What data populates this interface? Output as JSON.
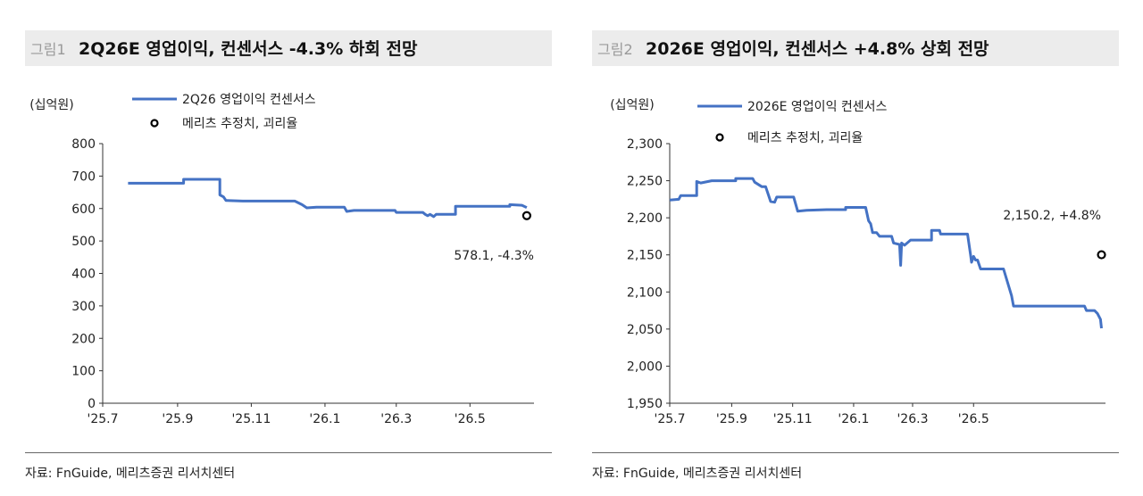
{
  "charts": [
    {
      "fig_tag": "그림1",
      "title": "2Q26E 영업이익, 컨센서스 -4.3% 하회 전망",
      "source": "자료: FnGuide, 메리츠증권 리서치센터",
      "chart_data": {
        "type": "line",
        "unit": "(십억원)",
        "series": [
          {
            "name": "2Q26 영업이익 컨센서스",
            "color": "#4472c4",
            "points": [
              [
                "2025-07-22",
                678
              ],
              [
                "2025-09-06",
                678
              ],
              [
                "2025-09-06",
                690
              ],
              [
                "2025-10-06",
                690
              ],
              [
                "2025-10-06",
                642
              ],
              [
                "2025-10-09",
                636
              ],
              [
                "2025-10-11",
                625
              ],
              [
                "2025-10-25",
                623
              ],
              [
                "2025-12-07",
                623
              ],
              [
                "2025-12-13",
                612
              ],
              [
                "2025-12-17",
                602
              ],
              [
                "2025-12-25",
                604
              ],
              [
                "2026-01-17",
                604
              ],
              [
                "2026-01-19",
                591
              ],
              [
                "2026-01-25",
                594
              ],
              [
                "2026-02-28",
                594
              ],
              [
                "2026-03-01",
                588
              ],
              [
                "2026-03-23",
                588
              ],
              [
                "2026-03-25",
                582
              ],
              [
                "2026-03-27",
                578
              ],
              [
                "2026-03-29",
                582
              ],
              [
                "2026-04-01",
                575
              ],
              [
                "2026-04-03",
                582
              ],
              [
                "2026-04-19",
                582
              ],
              [
                "2026-04-19",
                607
              ],
              [
                "2026-06-03",
                607
              ],
              [
                "2026-06-03",
                612
              ],
              [
                "2026-06-13",
                610
              ],
              [
                "2026-06-17",
                603
              ]
            ]
          },
          {
            "name": "메리츠 추정치, 괴리율",
            "marker": "circle",
            "points": [
              [
                "2026-06-17",
                578.1
              ]
            ],
            "label": "578.1, -4.3%"
          }
        ],
        "x_ticks": [
          "'25.7",
          "'25.9",
          "'25.11",
          "'26.1",
          "'26.3",
          "'26.5"
        ],
        "x_tick_dates": [
          "2025-07-01",
          "2025-09-01",
          "2025-11-01",
          "2026-01-01",
          "2026-03-01",
          "2026-05-01"
        ],
        "x_range": [
          "2025-07-01",
          "2026-06-23"
        ],
        "y_ticks": [
          "800",
          "700",
          "600",
          "500",
          "400",
          "300",
          "200",
          "100",
          "0"
        ],
        "y_tick_values": [
          800,
          700,
          600,
          500,
          400,
          300,
          200,
          100,
          0
        ],
        "ylim": [
          0,
          800
        ],
        "grid": false
      }
    },
    {
      "fig_tag": "그림2",
      "title": "2026E 영업이익, 컨센서스 +4.8% 상회 전망",
      "source": "자료: FnGuide, 메리츠증권 리서치센터",
      "chart_data": {
        "type": "line",
        "unit": "(십억원)",
        "series": [
          {
            "name": "2026E 영업이익 컨센서스",
            "color": "#4472c4",
            "points": [
              [
                "2025-07-01",
                2224
              ],
              [
                "2025-07-10",
                2225
              ],
              [
                "2025-07-12",
                2230
              ],
              [
                "2025-07-28",
                2230
              ],
              [
                "2025-07-28",
                2249
              ],
              [
                "2025-08-01",
                2247
              ],
              [
                "2025-08-12",
                2250
              ],
              [
                "2025-09-05",
                2250
              ],
              [
                "2025-09-05",
                2253
              ],
              [
                "2025-09-22",
                2253
              ],
              [
                "2025-09-24",
                2248
              ],
              [
                "2025-10-01",
                2242
              ],
              [
                "2025-10-05",
                2242
              ],
              [
                "2025-10-10",
                2222
              ],
              [
                "2025-10-14",
                2221
              ],
              [
                "2025-10-16",
                2228
              ],
              [
                "2025-11-02",
                2228
              ],
              [
                "2025-11-06",
                2209
              ],
              [
                "2025-11-15",
                2210
              ],
              [
                "2025-12-05",
                2211
              ],
              [
                "2025-12-24",
                2211
              ],
              [
                "2025-12-24",
                2214
              ],
              [
                "2026-01-13",
                2214
              ],
              [
                "2026-01-16",
                2196
              ],
              [
                "2026-01-18",
                2192
              ],
              [
                "2026-01-20",
                2180
              ],
              [
                "2026-01-24",
                2180
              ],
              [
                "2026-01-27",
                2175
              ],
              [
                "2026-02-08",
                2175
              ],
              [
                "2026-02-10",
                2166
              ],
              [
                "2026-02-16",
                2164
              ],
              [
                "2026-02-17",
                2136
              ],
              [
                "2026-02-18",
                2166
              ],
              [
                "2026-02-21",
                2163
              ],
              [
                "2026-02-27",
                2170
              ],
              [
                "2026-03-20",
                2170
              ],
              [
                "2026-03-20",
                2183
              ],
              [
                "2026-03-28",
                2183
              ],
              [
                "2026-03-29",
                2178
              ],
              [
                "2026-04-25",
                2178
              ],
              [
                "2026-04-28",
                2150
              ],
              [
                "2026-04-29",
                2140
              ],
              [
                "2026-05-01",
                2148
              ],
              [
                "2026-05-03",
                2143
              ],
              [
                "2026-05-05",
                2143
              ],
              [
                "2026-05-08",
                2131
              ],
              [
                "2026-05-31",
                2131
              ],
              [
                "2026-06-08",
                2095
              ],
              [
                "2026-06-10",
                2081
              ],
              [
                "2026-08-20",
                2081
              ],
              [
                "2026-08-22",
                2075
              ],
              [
                "2026-08-30",
                2075
              ],
              [
                "2026-09-02",
                2071
              ],
              [
                "2026-09-05",
                2063
              ],
              [
                "2026-09-06",
                2051
              ]
            ]
          },
          {
            "name": "메리츠 추정치, 괴리율",
            "marker": "circle",
            "points": [
              [
                "2026-09-06",
                2150.2
              ]
            ],
            "label": "2,150.2, +4.8%"
          }
        ],
        "x_ticks": [
          "'25.7",
          "'25.9",
          "'25.11",
          "'26.1",
          "'26.3",
          "'26.5"
        ],
        "x_tick_dates": [
          "2025-07-01",
          "2025-09-01",
          "2025-11-01",
          "2026-01-01",
          "2026-03-01",
          "2026-05-01"
        ],
        "x_range": [
          "2025-07-01",
          "2026-09-10"
        ],
        "y_ticks": [
          "2,300",
          "2,250",
          "2,200",
          "2,150",
          "2,100",
          "2,050",
          "2,000",
          "1,950"
        ],
        "y_tick_values": [
          2300,
          2250,
          2200,
          2150,
          2100,
          2050,
          2000,
          1950
        ],
        "ylim": [
          1950,
          2300
        ],
        "grid": false
      }
    }
  ]
}
